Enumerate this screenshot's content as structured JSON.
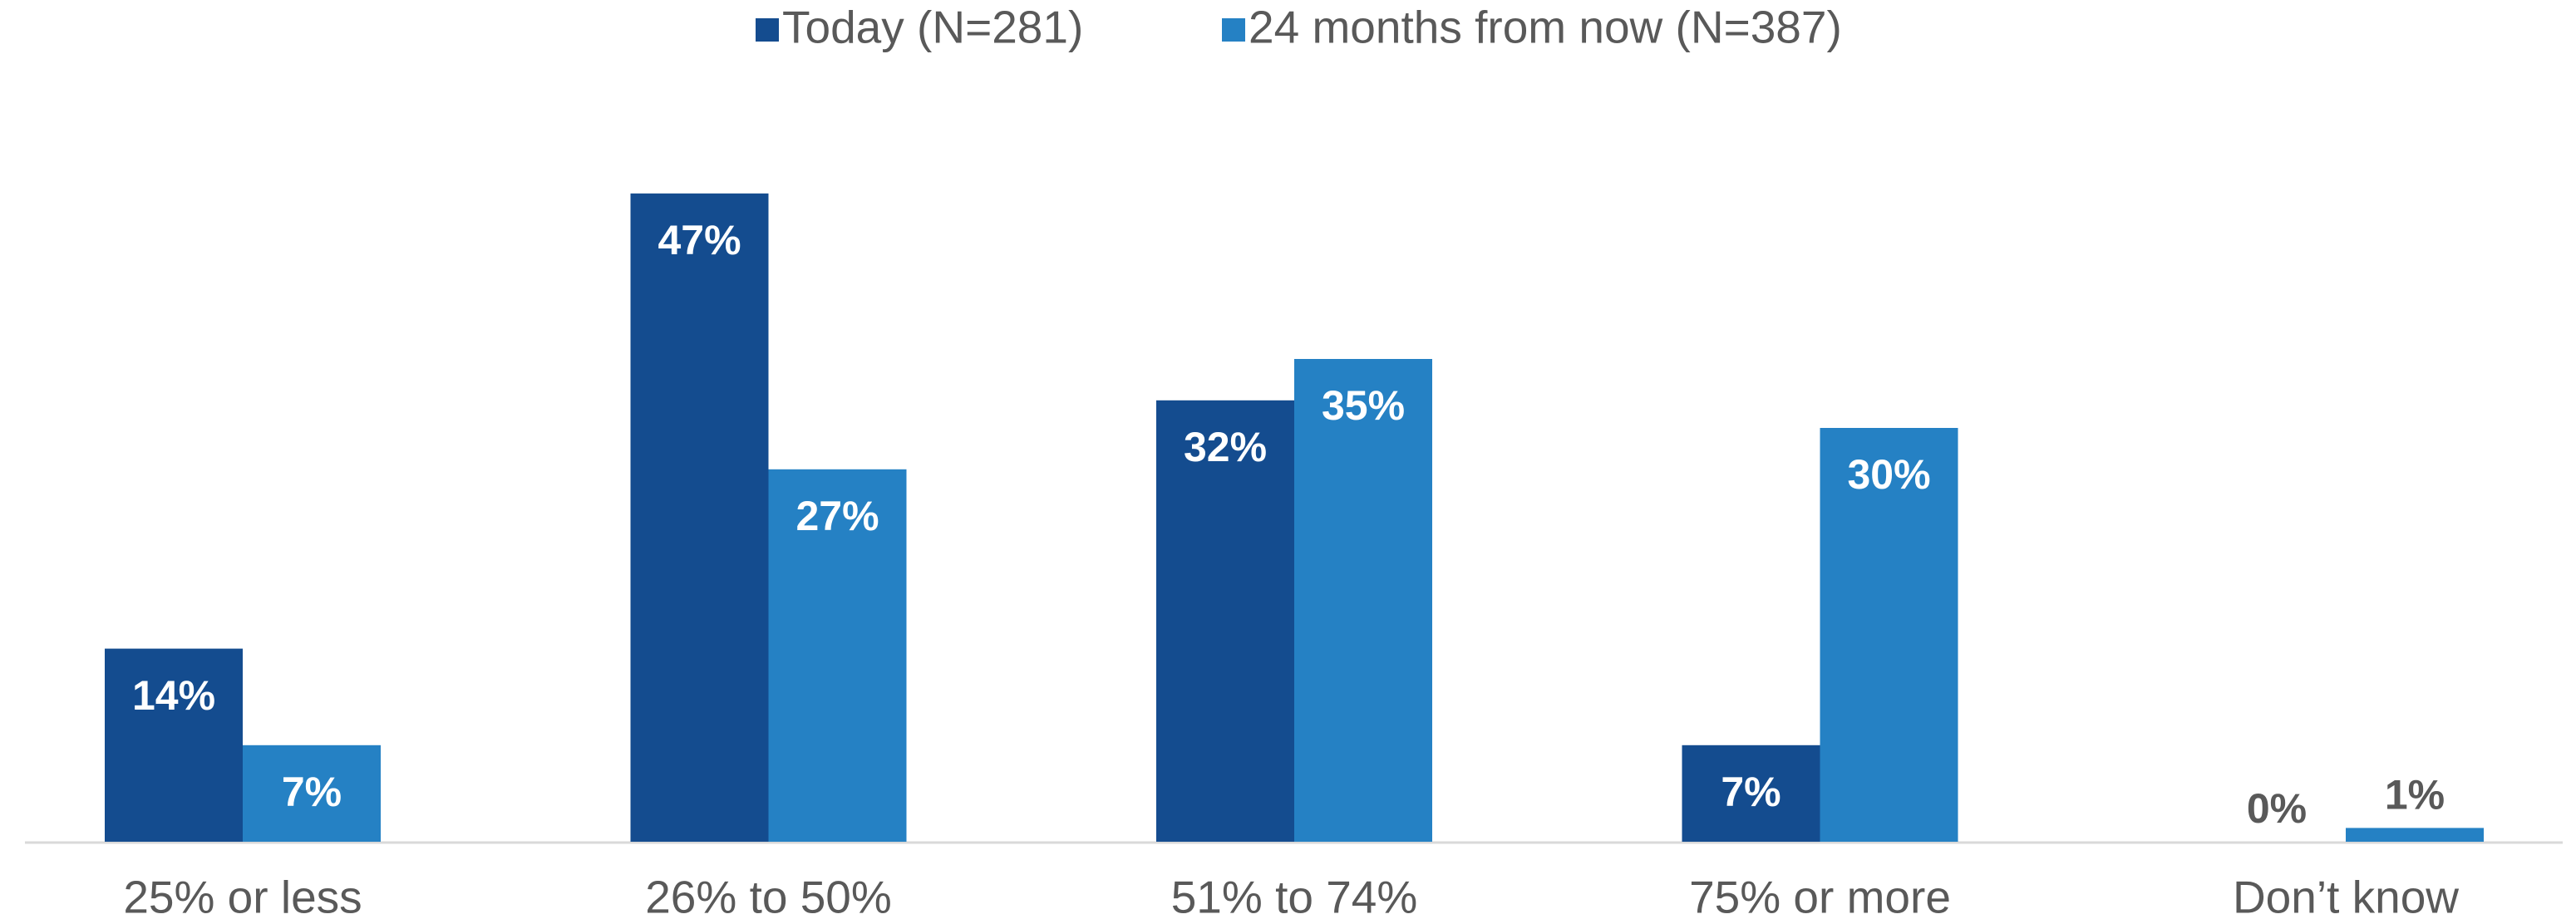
{
  "chart_data": {
    "type": "bar",
    "categories": [
      "25% or less",
      "26% to 50%",
      "51% to 74%",
      "75% or more",
      "Don’t know"
    ],
    "series": [
      {
        "name": "Today (N=281)",
        "color": "#144c8f",
        "values": [
          14,
          47,
          32,
          7,
          0
        ],
        "value_labels": [
          "14%",
          "47%",
          "32%",
          "7%",
          "0%"
        ]
      },
      {
        "name": "24 months from now (N=387)",
        "color": "#2581c4",
        "values": [
          7,
          27,
          35,
          30,
          1
        ],
        "value_labels": [
          "7%",
          "27%",
          "35%",
          "30%",
          "1%"
        ]
      }
    ],
    "legend": "top"
  }
}
